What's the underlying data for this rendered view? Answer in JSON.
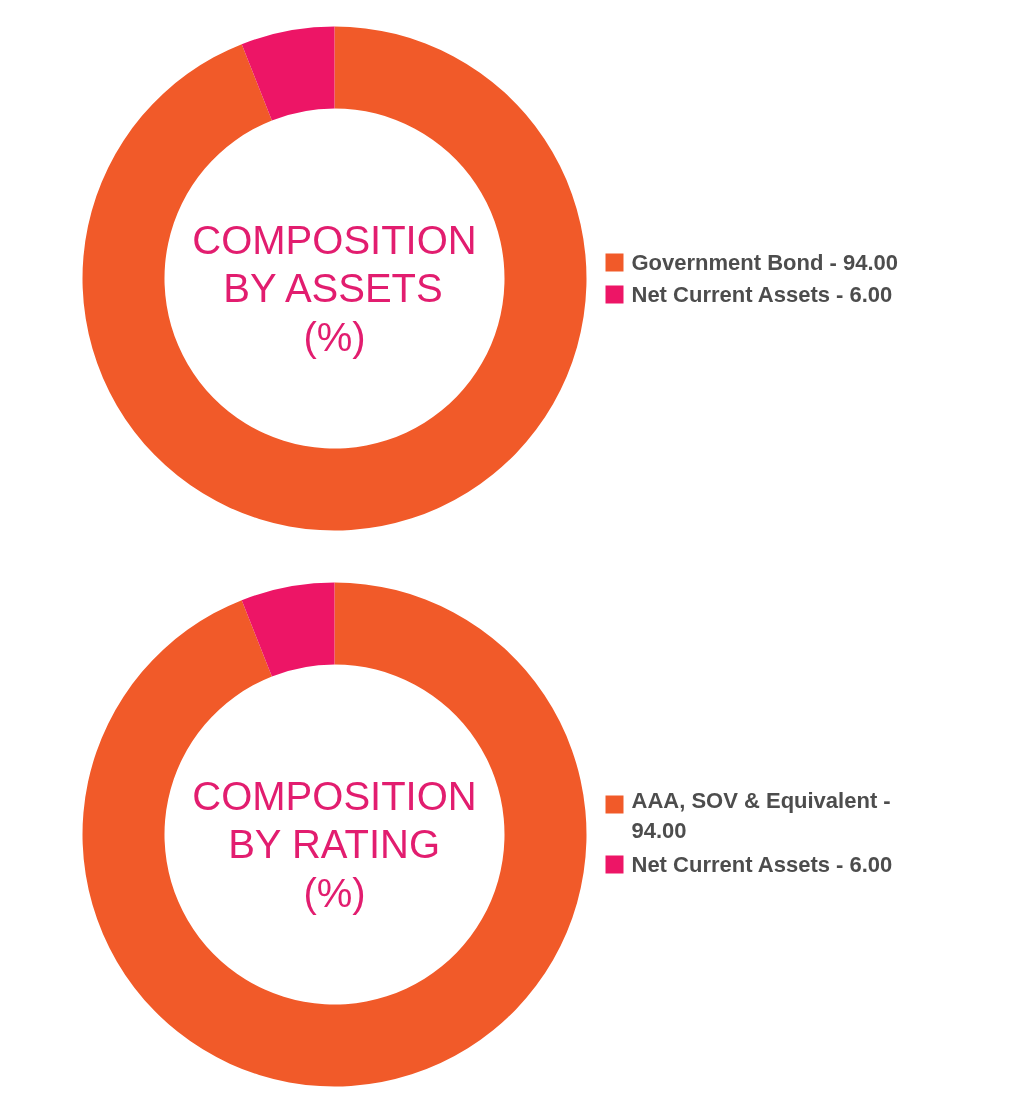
{
  "chart_data": [
    {
      "type": "donut",
      "title": "COMPOSITION\nBY ASSETS\n(%)",
      "categories": [
        "Government Bond - 94.00",
        "Net Current Assets - 6.00"
      ],
      "values": [
        94.0,
        6.0
      ],
      "colors": [
        "#f15a29",
        "#ed1566"
      ],
      "legend": "right"
    },
    {
      "type": "donut",
      "title": "COMPOSITION\nBY RATING\n(%)",
      "categories": [
        "AAA, SOV & Equivalent - 94.00",
        "Net Current Assets - 6.00"
      ],
      "values": [
        94.0,
        6.0
      ],
      "colors": [
        "#f15a29",
        "#ed1566"
      ],
      "legend": "right"
    }
  ]
}
